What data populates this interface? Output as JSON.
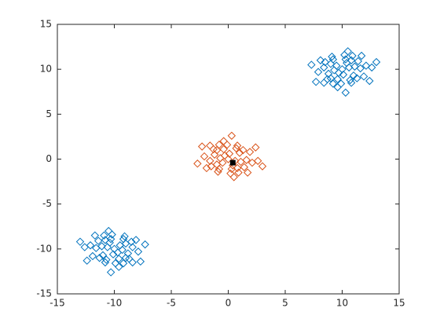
{
  "chart_data": {
    "type": "scatter",
    "xlim": [
      -15,
      15
    ],
    "xticks": [
      -15,
      -10,
      -5,
      0,
      5,
      10,
      15
    ],
    "ylim": [
      -15,
      15
    ],
    "yticks": [
      -15,
      -10,
      -5,
      0,
      5,
      10,
      15
    ],
    "grid": false,
    "series": [
      {
        "color": "#0072bd",
        "marker": "diamond",
        "x": [
          10,
          10.6,
          9.5,
          10.1,
          9.7,
          10.4,
          9.3,
          11.1,
          9,
          10.3,
          9.6,
          11,
          8.8,
          10.8,
          9.2,
          10.7,
          9,
          11.6,
          8.4,
          10.2,
          9.9,
          11.4,
          8.5,
          11.3,
          8.7,
          10.9,
          9.1,
          10.8,
          9.2,
          12.1,
          7.9,
          10.5,
          9.6,
          11.9,
          8.1,
          11.7,
          8.4,
          12.6,
          7.3,
          10.3,
          12.4,
          7.7,
          13,
          -10,
          -10.6,
          -9.5,
          -10.1,
          -9.7,
          -10.4,
          -9.3,
          -11.1,
          -9,
          -10.3,
          -9.6,
          -11,
          -8.8,
          -10.8,
          -9.2,
          -10.7,
          -9,
          -11.6,
          -8.4,
          -10.2,
          -9.9,
          -11.4,
          -8.5,
          -11.3,
          -8.7,
          -10.9,
          -9.1,
          -10.8,
          -9.2,
          -12.1,
          -7.9,
          -10.5,
          -9.6,
          -11.9,
          -8.1,
          -11.7,
          -8.4,
          -12.6,
          -7.3,
          -10.3,
          -12.4,
          -7.7,
          -13
        ],
        "values": [
          10,
          10.2,
          10.4,
          9.4,
          9.6,
          10.7,
          9.9,
          10.3,
          10.6,
          11.1,
          8.9,
          9.3,
          9.5,
          11,
          11.1,
          8.8,
          9,
          10.1,
          10.2,
          11.6,
          8.4,
          10.9,
          10.8,
          9,
          8.9,
          11.5,
          11.4,
          8.5,
          8.4,
          10.4,
          9.7,
          12,
          8,
          9.2,
          11,
          11.5,
          8.5,
          10.2,
          10.5,
          7.4,
          8.7,
          8.6,
          10.8,
          -10,
          -9.8,
          -9.6,
          -10.6,
          -10.4,
          -9.3,
          -10.1,
          -9.7,
          -9.4,
          -8.9,
          -11.1,
          -10.7,
          -10.5,
          -9,
          -8.9,
          -11.2,
          -11,
          -9.9,
          -9.8,
          -8.4,
          -11.6,
          -9.1,
          -9.2,
          -11,
          -11.1,
          -8.5,
          -8.6,
          -11.5,
          -11.6,
          -9.6,
          -10.3,
          -8,
          -12,
          -10.8,
          -9,
          -8.5,
          -11.5,
          -9.8,
          -9.5,
          -12.6,
          -11.3,
          -11.4,
          -9.2
        ]
      },
      {
        "color": "#d95319",
        "marker": "diamond",
        "x": [
          0,
          0.6,
          -0.5,
          0.1,
          -0.3,
          0.4,
          -0.7,
          1.1,
          -1,
          0.3,
          -0.4,
          1,
          -1.2,
          0.8,
          -0.8,
          0.7,
          -1,
          1.6,
          -1.6,
          0.2,
          -0.1,
          1.4,
          -1.5,
          1.3,
          -1.3,
          0.9,
          -0.9,
          0.8,
          -0.8,
          2.1,
          -2.1,
          0.5,
          -0.4,
          1.9,
          -1.9,
          1.7,
          -1.6,
          2.6,
          -2.7,
          0.3,
          2.4,
          -2.3,
          3
        ],
        "values": [
          0,
          -0.2,
          -0.4,
          0.6,
          0.4,
          -0.7,
          0.1,
          -0.3,
          -0.6,
          -1.1,
          1.1,
          0.7,
          0.5,
          -1,
          -1.1,
          1.2,
          1,
          -0.1,
          -0.2,
          -1.6,
          1.6,
          -0.9,
          -0.8,
          1,
          1.1,
          -1.5,
          -1.4,
          1.5,
          1.6,
          -0.4,
          0.3,
          -2,
          2,
          0.8,
          -1,
          -1.5,
          1.5,
          -0.2,
          -0.5,
          2.6,
          1.3,
          1.4,
          -0.8
        ]
      },
      {
        "color": "#000000",
        "marker": "filled-square",
        "x": [
          0.4
        ],
        "values": [
          -0.4
        ]
      }
    ]
  }
}
